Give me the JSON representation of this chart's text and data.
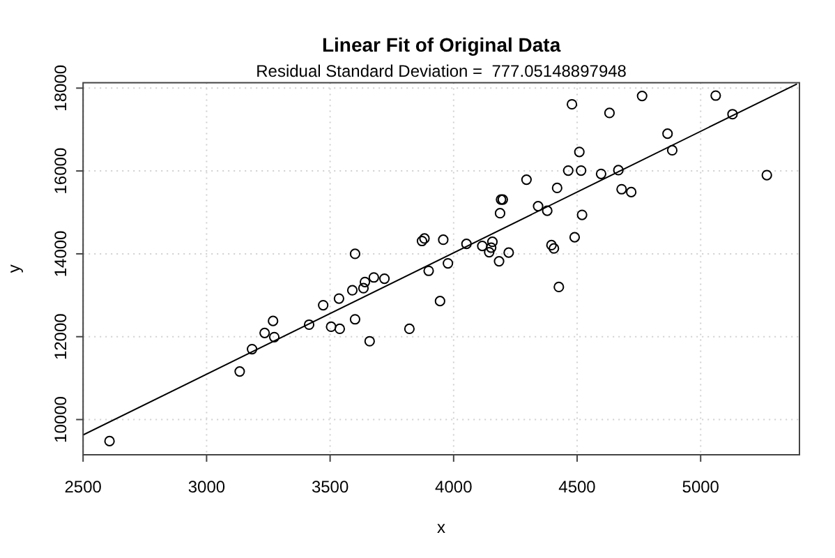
{
  "chart_data": {
    "type": "scatter",
    "title": "Linear Fit of Original Data",
    "subtitle": "Residual Standard Deviation =  777.05148897948",
    "xlabel": "x",
    "ylabel": "y",
    "xlim": [
      2500,
      5400
    ],
    "ylim": [
      9150,
      18130
    ],
    "xticks": [
      2500,
      3000,
      3500,
      4000,
      4500,
      5000
    ],
    "yticks": [
      10000,
      12000,
      14000,
      16000,
      18000
    ],
    "grid": true,
    "marker": "circle",
    "series": [
      {
        "color": "#000000",
        "x": [
          2607,
          3134,
          3184,
          3235,
          3269,
          3274,
          3415,
          3472,
          3504,
          3536,
          3539,
          3590,
          3601,
          3601,
          3635,
          3641,
          3660,
          3677,
          3720,
          3821,
          3872,
          3882,
          3899,
          3945,
          3958,
          3977,
          4052,
          4116,
          4144,
          4152,
          4157,
          4184,
          4188,
          4192,
          4199,
          4223,
          4295,
          4342,
          4379,
          4396,
          4406,
          4419,
          4426,
          4464,
          4479,
          4490,
          4509,
          4516,
          4520,
          4597,
          4631,
          4667,
          4680,
          4719,
          4763,
          4866,
          4885,
          5061,
          5129,
          5268
        ],
        "values": [
          9480,
          11160,
          11700,
          12090,
          12380,
          11990,
          12290,
          12760,
          12240,
          12920,
          12190,
          13120,
          12420,
          14000,
          13170,
          13320,
          11890,
          13430,
          13400,
          12190,
          14310,
          14370,
          13590,
          12860,
          14340,
          13770,
          14240,
          14190,
          14040,
          14150,
          14290,
          13820,
          14980,
          15310,
          15310,
          14030,
          15790,
          15150,
          15040,
          14210,
          14130,
          15590,
          13200,
          16010,
          17610,
          14400,
          16460,
          16010,
          14940,
          15930,
          17400,
          16020,
          15560,
          15490,
          17810,
          16900,
          16500,
          17820,
          17370,
          15900
        ]
      },
      {
        "type": "line",
        "color": "#000000",
        "marker": "none",
        "line_style": "solid",
        "x": [
          2500,
          5390
        ],
        "values": [
          9630,
          18100
        ]
      }
    ]
  }
}
